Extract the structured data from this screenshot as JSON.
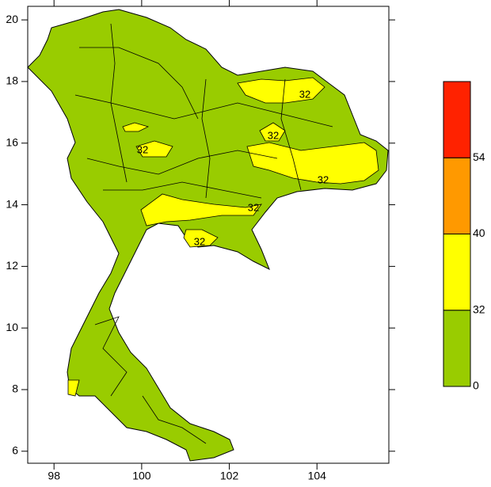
{
  "map": {
    "xlim": [
      97.4,
      105.64
    ],
    "ylim": [
      5.61,
      20.44
    ],
    "xticks": [
      98,
      100,
      102,
      104
    ],
    "yticks": [
      6,
      8,
      10,
      12,
      14,
      16,
      18,
      20
    ],
    "colorbar": {
      "levels": [
        0,
        32,
        40,
        54
      ],
      "colors": [
        "#99cc00",
        "#ffff00",
        "#ff9900",
        "#ff2200"
      ]
    },
    "contour_labels": [
      32,
      32,
      32,
      32,
      32,
      32
    ]
  }
}
